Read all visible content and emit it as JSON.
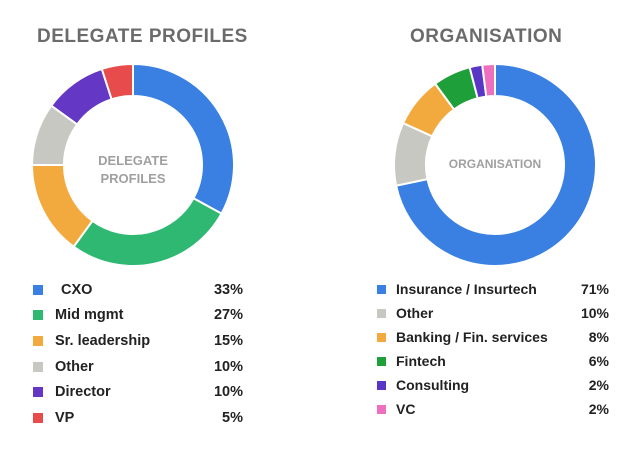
{
  "chart_data": [
    {
      "type": "pie",
      "title": "DELEGATE PROFILES",
      "center_label": [
        "DELEGATE",
        "PROFILES"
      ],
      "categories": [
        "CXO",
        "Mid mgmt",
        "Sr. leadership",
        "Other",
        "Director",
        "VP"
      ],
      "values": [
        33,
        27,
        15,
        10,
        10,
        5
      ],
      "value_labels": [
        "33%",
        "27%",
        "15%",
        "10%",
        "10%",
        "5%"
      ],
      "colors": [
        "#3a7fe2",
        "#2fb872",
        "#f2aa3e",
        "#c8c8c2",
        "#6437c4",
        "#e74b4b"
      ],
      "legend_placement": "bottom"
    },
    {
      "type": "pie",
      "title": "ORGANISATION",
      "center_label": [
        "ORGANISATION"
      ],
      "categories": [
        "Insurance / Insurtech",
        "Other",
        "Banking / Fin. services",
        "Fintech",
        "Consulting",
        "VC"
      ],
      "values": [
        71,
        10,
        8,
        6,
        2,
        2
      ],
      "value_labels": [
        "71%",
        "10%",
        "8%",
        "6%",
        "2%",
        "2%"
      ],
      "colors": [
        "#3a7fe2",
        "#c8c8c2",
        "#f2aa3e",
        "#1f9f3a",
        "#5a36c6",
        "#ec6fc0"
      ],
      "legend_placement": "bottom"
    }
  ]
}
